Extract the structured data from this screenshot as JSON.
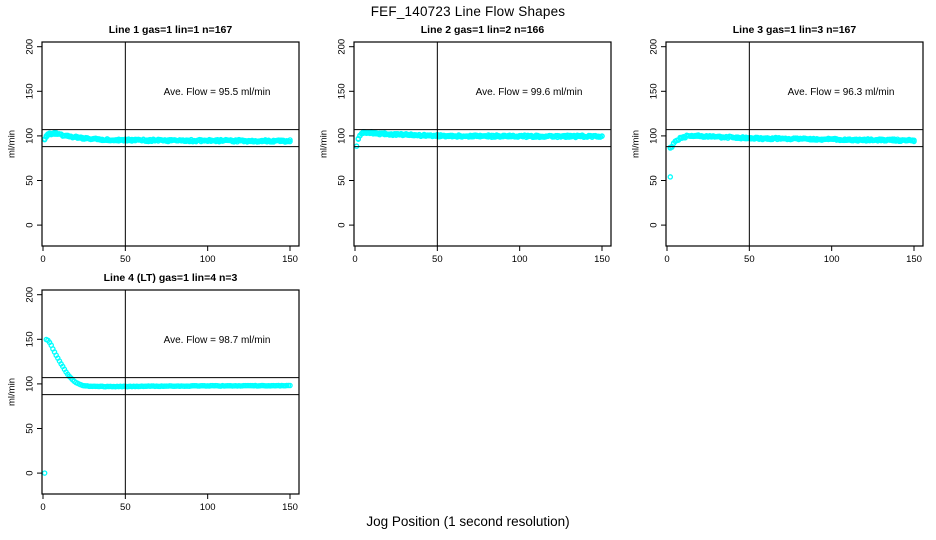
{
  "page": {
    "main_title": "FEF_140723  Line Flow Shapes",
    "x_axis_caption": "Jog Position (1 second resolution)"
  },
  "chart_data": {
    "type": "scatter",
    "title": "FEF_140723  Line Flow Shapes",
    "xlabel": "Jog Position (1 second resolution)",
    "ylabel": "ml/min",
    "xticks": [
      0,
      50,
      100,
      150
    ],
    "yticks": [
      0,
      50,
      100,
      150,
      200
    ],
    "xlim": [
      -2,
      153
    ],
    "ylim": [
      -12,
      206
    ],
    "grid": false,
    "legend": null,
    "point_color": "#00ffff",
    "axis_color": "#000000",
    "reference_hlines": [
      88,
      107
    ],
    "reference_vline": 50,
    "panels": [
      {
        "title": "Line 1 gas=1 lin=1 n=167",
        "annotation": "Ave. Flow =  95.5  ml/min",
        "ave_flow": 95.5,
        "n": 167,
        "spread": 1.0,
        "outliers": [],
        "profile": [
          [
            1,
            96
          ],
          [
            2,
            99.5
          ],
          [
            4,
            102.5
          ],
          [
            6,
            103
          ],
          [
            10,
            101.5
          ],
          [
            15,
            100
          ],
          [
            20,
            98.5
          ],
          [
            30,
            96.5
          ],
          [
            40,
            95.5
          ],
          [
            60,
            95
          ],
          [
            90,
            94.8
          ],
          [
            120,
            94.5
          ],
          [
            150,
            94.3
          ]
        ]
      },
      {
        "title": "Line 2 gas=1 lin=2 n=166",
        "annotation": "Ave. Flow =  99.6  ml/min",
        "ave_flow": 99.6,
        "n": 166,
        "spread": 1.0,
        "outliers": [
          [
            1,
            88.5
          ]
        ],
        "profile": [
          [
            2,
            97
          ],
          [
            3,
            101
          ],
          [
            5,
            103.5
          ],
          [
            8,
            104
          ],
          [
            15,
            102.5
          ],
          [
            25,
            101.5
          ],
          [
            40,
            100.5
          ],
          [
            60,
            100
          ],
          [
            100,
            99.6
          ],
          [
            150,
            99.5
          ]
        ]
      },
      {
        "title": "Line 3 gas=1 lin=3 n=167",
        "annotation": "Ave. Flow =  96.3  ml/min",
        "ave_flow": 96.3,
        "n": 167,
        "spread": 1.0,
        "outliers": [
          [
            2,
            54
          ]
        ],
        "profile": [
          [
            2,
            86.5
          ],
          [
            3,
            88
          ],
          [
            4,
            91
          ],
          [
            6,
            95
          ],
          [
            8,
            97.5
          ],
          [
            12,
            99.5
          ],
          [
            18,
            100
          ],
          [
            30,
            99
          ],
          [
            50,
            97.5
          ],
          [
            80,
            96.5
          ],
          [
            120,
            95.5
          ],
          [
            150,
            95
          ]
        ]
      },
      {
        "title": "Line 4 (LT) gas=1 lin=4 n=3",
        "annotation": "Ave. Flow =  98.7  ml/min",
        "ave_flow": 98.7,
        "n": 3,
        "spread": 0.3,
        "outliers": [
          [
            1,
            0
          ]
        ],
        "profile": [
          [
            2,
            150
          ],
          [
            3,
            149
          ],
          [
            4,
            146.5
          ],
          [
            5,
            143.5
          ],
          [
            6,
            139.5
          ],
          [
            8,
            132
          ],
          [
            10,
            125.5
          ],
          [
            12,
            119.5
          ],
          [
            14,
            113.5
          ],
          [
            16,
            108.5
          ],
          [
            18,
            104.5
          ],
          [
            20,
            101.5
          ],
          [
            22,
            99.5
          ],
          [
            25,
            98
          ],
          [
            30,
            97.2
          ],
          [
            40,
            97
          ],
          [
            60,
            97.3
          ],
          [
            100,
            97.8
          ],
          [
            150,
            98
          ]
        ]
      }
    ]
  }
}
